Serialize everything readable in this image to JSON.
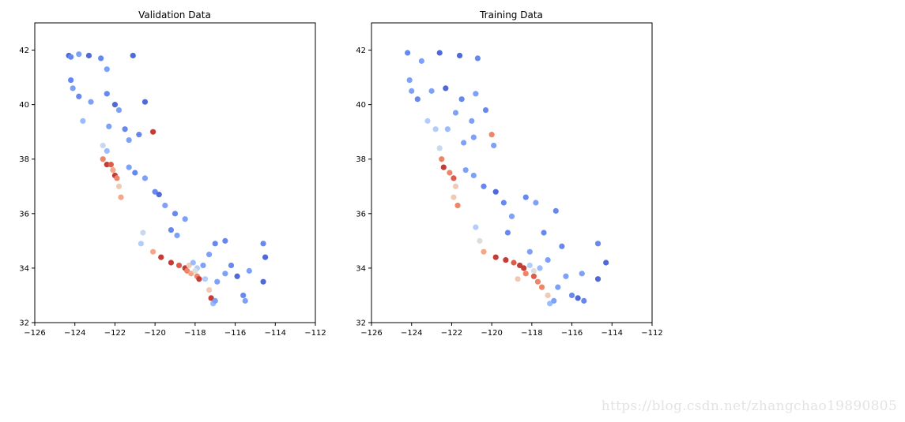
{
  "watermark": "https://blog.csdn.net/zhangchao19890805",
  "colors": {
    "scale": [
      "#3b4cc0",
      "#4f69d9",
      "#6788ee",
      "#7ea1f8",
      "#9abbff",
      "#b3cdfb",
      "#c9d8ef",
      "#dcdddd",
      "#f0cab5",
      "#f5a889",
      "#ee8468",
      "#dc5d4a",
      "#c33c36",
      "#b40426"
    ]
  },
  "chart_data": [
    {
      "type": "scatter",
      "title": "Validation Data",
      "xlim": [
        -126,
        -112
      ],
      "ylim": [
        32,
        43
      ],
      "xticks": [
        -126,
        -124,
        -122,
        -120,
        -118,
        -116,
        -114,
        -112
      ],
      "xtick_labels": [
        "−126",
        "−124",
        "−122",
        "−120",
        "−118",
        "−116",
        "−114",
        "−112"
      ],
      "yticks": [
        32,
        34,
        36,
        38,
        40,
        42
      ],
      "ytick_labels": [
        "32",
        "34",
        "36",
        "38",
        "40",
        "42"
      ],
      "colormap": "coolwarm",
      "grid": false,
      "points": [
        {
          "x": -124.3,
          "y": 41.8,
          "c": 0.1
        },
        {
          "x": -124.2,
          "y": 41.75,
          "c": 0.15
        },
        {
          "x": -123.8,
          "y": 41.85,
          "c": 0.25
        },
        {
          "x": -123.3,
          "y": 41.8,
          "c": 0.1
        },
        {
          "x": -122.7,
          "y": 41.7,
          "c": 0.15
        },
        {
          "x": -121.1,
          "y": 41.8,
          "c": 0.05
        },
        {
          "x": -122.4,
          "y": 41.3,
          "c": 0.2
        },
        {
          "x": -124.2,
          "y": 40.9,
          "c": 0.15
        },
        {
          "x": -124.1,
          "y": 40.6,
          "c": 0.2
        },
        {
          "x": -123.8,
          "y": 40.3,
          "c": 0.15
        },
        {
          "x": -123.2,
          "y": 40.1,
          "c": 0.2
        },
        {
          "x": -122.4,
          "y": 40.4,
          "c": 0.15
        },
        {
          "x": -122.0,
          "y": 40.0,
          "c": 0.1
        },
        {
          "x": -121.8,
          "y": 39.8,
          "c": 0.2
        },
        {
          "x": -120.5,
          "y": 40.1,
          "c": 0.1
        },
        {
          "x": -122.3,
          "y": 39.2,
          "c": 0.2
        },
        {
          "x": -121.5,
          "y": 39.1,
          "c": 0.15
        },
        {
          "x": -121.3,
          "y": 38.7,
          "c": 0.25
        },
        {
          "x": -120.8,
          "y": 38.9,
          "c": 0.15
        },
        {
          "x": -120.1,
          "y": 39.0,
          "c": 0.9
        },
        {
          "x": -123.6,
          "y": 39.4,
          "c": 0.3
        },
        {
          "x": -122.6,
          "y": 38.5,
          "c": 0.45
        },
        {
          "x": -122.4,
          "y": 38.3,
          "c": 0.3
        },
        {
          "x": -122.6,
          "y": 38.0,
          "c": 0.75
        },
        {
          "x": -122.4,
          "y": 37.8,
          "c": 0.95
        },
        {
          "x": -122.2,
          "y": 37.8,
          "c": 0.85
        },
        {
          "x": -122.1,
          "y": 37.6,
          "c": 0.7
        },
        {
          "x": -122.0,
          "y": 37.4,
          "c": 0.95
        },
        {
          "x": -121.9,
          "y": 37.3,
          "c": 0.8
        },
        {
          "x": -121.8,
          "y": 37.0,
          "c": 0.65
        },
        {
          "x": -121.7,
          "y": 36.6,
          "c": 0.7
        },
        {
          "x": -121.3,
          "y": 37.7,
          "c": 0.2
        },
        {
          "x": -121.0,
          "y": 37.5,
          "c": 0.15
        },
        {
          "x": -120.5,
          "y": 37.3,
          "c": 0.2
        },
        {
          "x": -120.0,
          "y": 36.8,
          "c": 0.15
        },
        {
          "x": -119.8,
          "y": 36.7,
          "c": 0.1
        },
        {
          "x": -119.5,
          "y": 36.3,
          "c": 0.2
        },
        {
          "x": -119.0,
          "y": 36.0,
          "c": 0.15
        },
        {
          "x": -119.2,
          "y": 35.4,
          "c": 0.15
        },
        {
          "x": -118.5,
          "y": 35.8,
          "c": 0.2
        },
        {
          "x": -118.9,
          "y": 35.2,
          "c": 0.2
        },
        {
          "x": -120.6,
          "y": 35.3,
          "c": 0.45
        },
        {
          "x": -120.7,
          "y": 34.9,
          "c": 0.4
        },
        {
          "x": -120.1,
          "y": 34.6,
          "c": 0.7
        },
        {
          "x": -119.7,
          "y": 34.4,
          "c": 0.95
        },
        {
          "x": -119.2,
          "y": 34.2,
          "c": 0.9
        },
        {
          "x": -118.8,
          "y": 34.1,
          "c": 0.85
        },
        {
          "x": -118.5,
          "y": 34.0,
          "c": 0.95
        },
        {
          "x": -118.4,
          "y": 33.9,
          "c": 0.8
        },
        {
          "x": -118.3,
          "y": 34.1,
          "c": 0.6
        },
        {
          "x": -118.2,
          "y": 33.8,
          "c": 0.7
        },
        {
          "x": -118.1,
          "y": 34.2,
          "c": 0.3
        },
        {
          "x": -117.9,
          "y": 33.7,
          "c": 0.8
        },
        {
          "x": -117.8,
          "y": 33.6,
          "c": 0.9
        },
        {
          "x": -117.9,
          "y": 34.0,
          "c": 0.35
        },
        {
          "x": -117.6,
          "y": 34.1,
          "c": 0.2
        },
        {
          "x": -117.3,
          "y": 33.2,
          "c": 0.6
        },
        {
          "x": -117.2,
          "y": 32.9,
          "c": 0.95
        },
        {
          "x": -117.1,
          "y": 32.7,
          "c": 0.3
        },
        {
          "x": -117.0,
          "y": 32.8,
          "c": 0.2
        },
        {
          "x": -116.9,
          "y": 33.5,
          "c": 0.25
        },
        {
          "x": -116.5,
          "y": 33.8,
          "c": 0.25
        },
        {
          "x": -116.2,
          "y": 34.1,
          "c": 0.15
        },
        {
          "x": -117.0,
          "y": 34.9,
          "c": 0.15
        },
        {
          "x": -117.3,
          "y": 34.5,
          "c": 0.2
        },
        {
          "x": -115.6,
          "y": 33.0,
          "c": 0.15
        },
        {
          "x": -115.5,
          "y": 32.8,
          "c": 0.2
        },
        {
          "x": -115.3,
          "y": 33.9,
          "c": 0.2
        },
        {
          "x": -114.6,
          "y": 34.9,
          "c": 0.15
        },
        {
          "x": -114.5,
          "y": 34.4,
          "c": 0.1
        },
        {
          "x": -114.6,
          "y": 33.5,
          "c": 0.05
        },
        {
          "x": -115.9,
          "y": 33.7,
          "c": 0.1
        },
        {
          "x": -116.5,
          "y": 35.0,
          "c": 0.15
        },
        {
          "x": -117.5,
          "y": 33.6,
          "c": 0.4
        },
        {
          "x": -118.0,
          "y": 33.9,
          "c": 0.5
        }
      ]
    },
    {
      "type": "scatter",
      "title": "Training Data",
      "xlim": [
        -126,
        -112
      ],
      "ylim": [
        32,
        43
      ],
      "xticks": [
        -126,
        -124,
        -122,
        -120,
        -118,
        -116,
        -114,
        -112
      ],
      "xtick_labels": [
        "−126",
        "−124",
        "−122",
        "−120",
        "−118",
        "−116",
        "−114",
        "−112"
      ],
      "yticks": [
        32,
        34,
        36,
        38,
        40,
        42
      ],
      "ytick_labels": [
        "32",
        "34",
        "36",
        "38",
        "40",
        "42"
      ],
      "colormap": "coolwarm",
      "grid": false,
      "points": [
        {
          "x": -124.2,
          "y": 41.9,
          "c": 0.15
        },
        {
          "x": -123.5,
          "y": 41.6,
          "c": 0.2
        },
        {
          "x": -122.6,
          "y": 41.9,
          "c": 0.1
        },
        {
          "x": -121.6,
          "y": 41.8,
          "c": 0.1
        },
        {
          "x": -120.7,
          "y": 41.7,
          "c": 0.15
        },
        {
          "x": -124.1,
          "y": 40.9,
          "c": 0.2
        },
        {
          "x": -124.0,
          "y": 40.5,
          "c": 0.25
        },
        {
          "x": -123.7,
          "y": 40.2,
          "c": 0.15
        },
        {
          "x": -123.0,
          "y": 40.5,
          "c": 0.2
        },
        {
          "x": -122.3,
          "y": 40.6,
          "c": 0.1
        },
        {
          "x": -121.5,
          "y": 40.2,
          "c": 0.15
        },
        {
          "x": -120.8,
          "y": 40.4,
          "c": 0.2
        },
        {
          "x": -120.3,
          "y": 39.8,
          "c": 0.15
        },
        {
          "x": -121.0,
          "y": 39.4,
          "c": 0.25
        },
        {
          "x": -121.8,
          "y": 39.7,
          "c": 0.2
        },
        {
          "x": -122.2,
          "y": 39.1,
          "c": 0.3
        },
        {
          "x": -121.4,
          "y": 38.6,
          "c": 0.25
        },
        {
          "x": -120.9,
          "y": 38.8,
          "c": 0.2
        },
        {
          "x": -120.0,
          "y": 38.9,
          "c": 0.75
        },
        {
          "x": -119.9,
          "y": 38.5,
          "c": 0.2
        },
        {
          "x": -122.8,
          "y": 39.1,
          "c": 0.35
        },
        {
          "x": -123.2,
          "y": 39.4,
          "c": 0.4
        },
        {
          "x": -122.6,
          "y": 38.4,
          "c": 0.45
        },
        {
          "x": -122.5,
          "y": 38.0,
          "c": 0.8
        },
        {
          "x": -122.4,
          "y": 37.7,
          "c": 0.95
        },
        {
          "x": -122.1,
          "y": 37.5,
          "c": 0.75
        },
        {
          "x": -121.9,
          "y": 37.3,
          "c": 0.85
        },
        {
          "x": -121.8,
          "y": 37.0,
          "c": 0.6
        },
        {
          "x": -121.9,
          "y": 36.6,
          "c": 0.65
        },
        {
          "x": -121.7,
          "y": 36.3,
          "c": 0.8
        },
        {
          "x": -121.3,
          "y": 37.6,
          "c": 0.25
        },
        {
          "x": -120.9,
          "y": 37.4,
          "c": 0.2
        },
        {
          "x": -120.4,
          "y": 37.0,
          "c": 0.15
        },
        {
          "x": -119.8,
          "y": 36.8,
          "c": 0.1
        },
        {
          "x": -119.4,
          "y": 36.4,
          "c": 0.15
        },
        {
          "x": -119.0,
          "y": 35.9,
          "c": 0.2
        },
        {
          "x": -119.2,
          "y": 35.3,
          "c": 0.15
        },
        {
          "x": -118.3,
          "y": 36.6,
          "c": 0.15
        },
        {
          "x": -117.8,
          "y": 36.4,
          "c": 0.2
        },
        {
          "x": -116.8,
          "y": 36.1,
          "c": 0.15
        },
        {
          "x": -120.8,
          "y": 35.5,
          "c": 0.4
        },
        {
          "x": -120.6,
          "y": 35.0,
          "c": 0.5
        },
        {
          "x": -120.4,
          "y": 34.6,
          "c": 0.7
        },
        {
          "x": -119.8,
          "y": 34.4,
          "c": 0.9
        },
        {
          "x": -119.3,
          "y": 34.3,
          "c": 0.95
        },
        {
          "x": -118.9,
          "y": 34.2,
          "c": 0.85
        },
        {
          "x": -118.6,
          "y": 34.1,
          "c": 0.9
        },
        {
          "x": -118.4,
          "y": 34.0,
          "c": 0.95
        },
        {
          "x": -118.3,
          "y": 33.8,
          "c": 0.75
        },
        {
          "x": -118.1,
          "y": 34.1,
          "c": 0.4
        },
        {
          "x": -117.9,
          "y": 33.7,
          "c": 0.85
        },
        {
          "x": -117.7,
          "y": 33.5,
          "c": 0.75
        },
        {
          "x": -117.5,
          "y": 33.3,
          "c": 0.8
        },
        {
          "x": -117.2,
          "y": 33.0,
          "c": 0.6
        },
        {
          "x": -117.1,
          "y": 32.7,
          "c": 0.3
        },
        {
          "x": -116.9,
          "y": 32.8,
          "c": 0.2
        },
        {
          "x": -116.7,
          "y": 33.3,
          "c": 0.25
        },
        {
          "x": -116.3,
          "y": 33.7,
          "c": 0.2
        },
        {
          "x": -116.0,
          "y": 33.0,
          "c": 0.15
        },
        {
          "x": -115.7,
          "y": 32.9,
          "c": 0.1
        },
        {
          "x": -115.4,
          "y": 32.8,
          "c": 0.15
        },
        {
          "x": -115.5,
          "y": 33.8,
          "c": 0.2
        },
        {
          "x": -114.7,
          "y": 34.9,
          "c": 0.15
        },
        {
          "x": -114.3,
          "y": 34.2,
          "c": 0.1
        },
        {
          "x": -114.7,
          "y": 33.6,
          "c": 0.1
        },
        {
          "x": -116.5,
          "y": 34.8,
          "c": 0.15
        },
        {
          "x": -117.2,
          "y": 34.3,
          "c": 0.2
        },
        {
          "x": -117.4,
          "y": 35.3,
          "c": 0.15
        },
        {
          "x": -118.1,
          "y": 34.6,
          "c": 0.2
        },
        {
          "x": -118.7,
          "y": 33.6,
          "c": 0.65
        },
        {
          "x": -117.6,
          "y": 34.0,
          "c": 0.3
        },
        {
          "x": -117.9,
          "y": 33.9,
          "c": 0.55
        }
      ]
    }
  ]
}
